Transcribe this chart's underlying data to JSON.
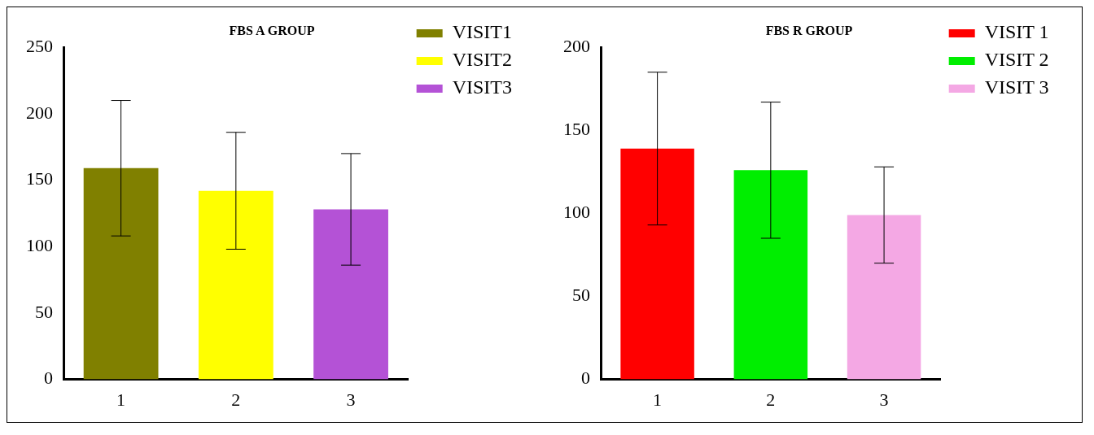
{
  "chart_data": [
    {
      "type": "bar",
      "title": "FBS A GROUP",
      "categories": [
        "1",
        "2",
        "3"
      ],
      "ylim": [
        0,
        250
      ],
      "yticks": [
        0,
        50,
        100,
        150,
        200,
        250
      ],
      "grid": false,
      "legend": "top right",
      "series": [
        {
          "name": "VISIT1",
          "color": "#808000",
          "values": [
            159,
            null,
            null
          ],
          "errors": [
            51,
            null,
            null
          ]
        },
        {
          "name": "VISIT2",
          "color": "#ffff00",
          "values": [
            null,
            142,
            null
          ],
          "errors": [
            null,
            44,
            null
          ]
        },
        {
          "name": "VISIT3",
          "color": "#b452d6",
          "values": [
            null,
            null,
            128
          ],
          "errors": [
            null,
            null,
            42
          ]
        }
      ]
    },
    {
      "type": "bar",
      "title": "FBS R GROUP",
      "categories": [
        "1",
        "2",
        "3"
      ],
      "ylim": [
        0,
        200
      ],
      "yticks": [
        0,
        50,
        100,
        150,
        200
      ],
      "grid": false,
      "legend": "top right",
      "series": [
        {
          "name": "VISIT 1",
          "color": "#ff0000",
          "values": [
            139,
            null,
            null
          ],
          "errors": [
            46,
            null,
            null
          ]
        },
        {
          "name": "VISIT 2",
          "color": "#00ee00",
          "values": [
            null,
            126,
            null
          ],
          "errors": [
            null,
            41,
            null
          ]
        },
        {
          "name": "VISIT 3",
          "color": "#f4a8e4",
          "values": [
            null,
            null,
            99
          ],
          "errors": [
            null,
            null,
            29
          ]
        }
      ]
    }
  ]
}
